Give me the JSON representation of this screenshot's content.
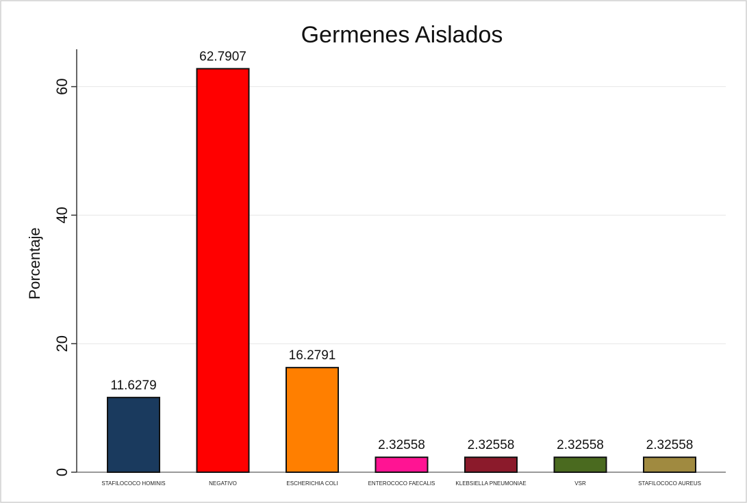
{
  "chart_data": {
    "type": "bar",
    "title": "Germenes Aislados",
    "ylabel": "Porcentaje",
    "xlabel": "",
    "ylim": [
      0,
      65
    ],
    "yticks": [
      0,
      20,
      40,
      60
    ],
    "grid": true,
    "legend": "none",
    "categories": [
      "STAFILOCOCO HOMINIS",
      "NEGATIVO",
      "ESCHERICHIA COLI",
      "ENTEROCOCO FAECALIS",
      "KLEBSIELLA PNEUMONIAE",
      "VSR",
      "STAFILOCOCO AUREUS"
    ],
    "values": [
      11.6279,
      62.7907,
      16.2791,
      2.32558,
      2.32558,
      2.32558,
      2.32558
    ],
    "value_labels": [
      "11.6279",
      "62.7907",
      "16.2791",
      "2.32558",
      "2.32558",
      "2.32558",
      "2.32558"
    ],
    "colors": [
      "#1a3a5e",
      "#ff0000",
      "#ff7f00",
      "#ff1493",
      "#8b1a2b",
      "#4a6a1f",
      "#a08a40"
    ]
  }
}
